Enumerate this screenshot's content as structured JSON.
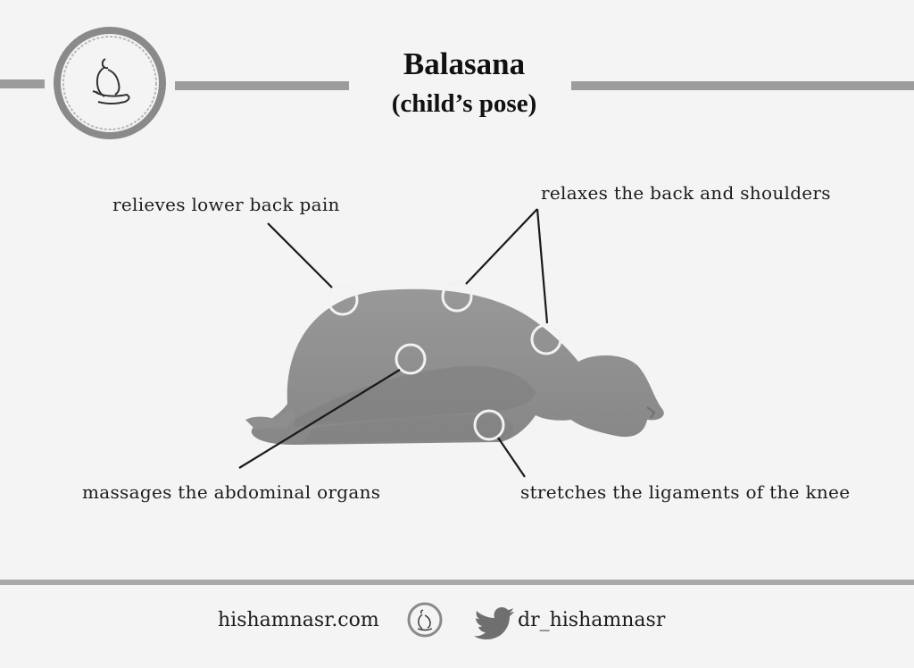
{
  "header": {
    "title": "Balasana",
    "subtitle": "(child’s pose)"
  },
  "annotations": {
    "lower_back": "relieves lower back pain",
    "back_shoulders": "relaxes the back and shoulders",
    "abdominal": "massages the abdominal organs",
    "knee": "stretches the ligaments of the knee"
  },
  "footer": {
    "website": "hishamnasr.com",
    "twitter_handle": "dr_hishamnasr"
  },
  "icons": {
    "logo": "meditating-figure-logo-icon",
    "footer_logo": "meditating-figure-small-icon",
    "twitter": "twitter-bird-icon"
  },
  "colors": {
    "background": "#f4f4f4",
    "bars": "#9c9c9c",
    "silhouette": "#8e8e8e",
    "text": "#1c1c1c"
  }
}
